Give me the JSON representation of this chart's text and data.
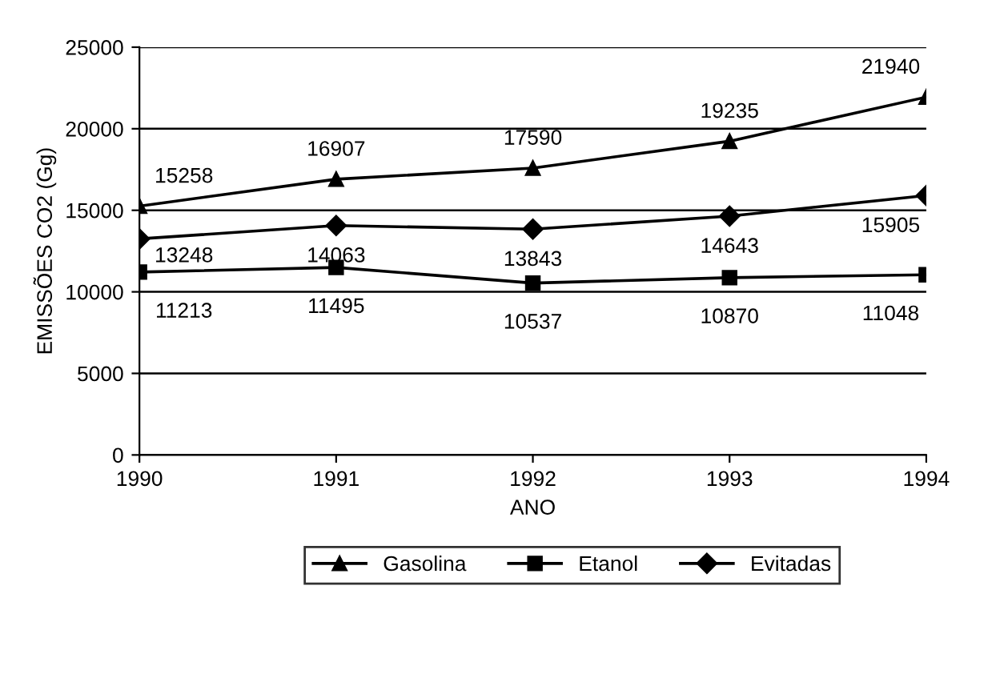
{
  "chart_data": {
    "type": "line",
    "xlabel": "ANO",
    "ylabel": "EMISSÕES CO2 (Gg)",
    "x": [
      1990,
      1991,
      1992,
      1993,
      1994
    ],
    "series": [
      {
        "name": "Gasolina",
        "color": "#000000",
        "marker": "triangle",
        "values": [
          15258,
          16907,
          17590,
          19235,
          21940
        ]
      },
      {
        "name": "Etanol",
        "color": "#000000",
        "marker": "square",
        "values": [
          11213,
          11495,
          10537,
          10870,
          11048
        ]
      },
      {
        "name": "Evitadas",
        "color": "#000000",
        "marker": "diamond",
        "values": [
          13248,
          14063,
          13843,
          14643,
          15905
        ]
      }
    ],
    "xlim": [
      1990,
      1994
    ],
    "xticks": [
      1990,
      1991,
      1992,
      1993,
      1994
    ],
    "ylim": [
      0,
      25000
    ],
    "yticks": [
      0,
      5000,
      10000,
      15000,
      20000,
      25000
    ],
    "grid": "y",
    "legend": "bottom",
    "data_labels": true,
    "line_style": "solid"
  }
}
